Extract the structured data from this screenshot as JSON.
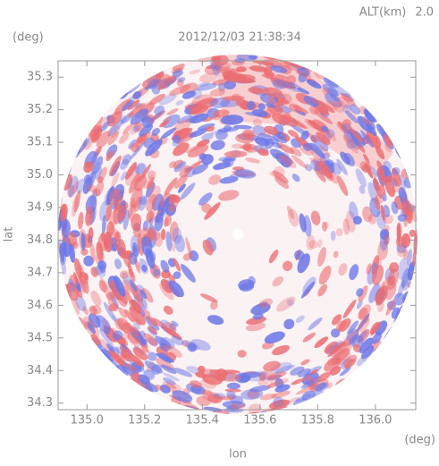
{
  "chart_data": {
    "type": "radar-image",
    "title": "2012/12/03 21:38:34",
    "altitude_label": "ALT(km)",
    "altitude": "2.0",
    "x_label": "lon",
    "y_label": "lat",
    "x_unit": "(deg)",
    "y_unit": "(deg)",
    "xlim": [
      134.9,
      136.14
    ],
    "ylim": [
      34.28,
      35.35
    ],
    "xticks": [
      {
        "value": 135,
        "label": "135.0"
      },
      135.2,
      135.4,
      135.6,
      135.8,
      {
        "value": 136,
        "label": "136.0"
      }
    ],
    "yticks": [
      34.3,
      34.4,
      34.5,
      34.6,
      34.7,
      34.8,
      34.9,
      {
        "value": 35,
        "label": "35.0"
      },
      35.1,
      35.2,
      35.3
    ]
  }
}
